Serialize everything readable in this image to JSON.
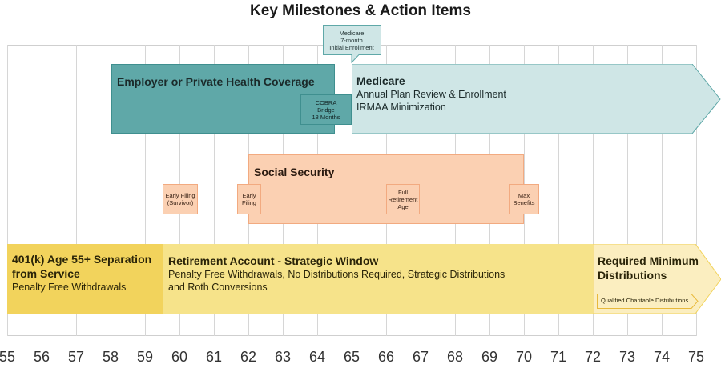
{
  "title": "Key Milestones & Action Items",
  "axis": {
    "ticks": [
      "55",
      "56",
      "57",
      "58",
      "59",
      "60",
      "61",
      "62",
      "63",
      "64",
      "65",
      "66",
      "67",
      "68",
      "69",
      "70",
      "71",
      "72",
      "73",
      "74",
      "75"
    ]
  },
  "colors": {
    "teal": "#5fa8a8",
    "teal_light": "#cfe6e6",
    "peach": "#fbd0b2",
    "gold": "#f2d35c",
    "yellow": "#f6e38a",
    "cream": "#fbeec0"
  },
  "health": {
    "employer": {
      "head": "Employer or Private Health Coverage"
    },
    "cobra": {
      "line1": "COBRA",
      "line2": "Bridge",
      "line3": "18 Months"
    },
    "medicare": {
      "head": "Medicare",
      "sub1": "Annual Plan Review & Enrollment",
      "sub2": "IRMAA Minimization"
    },
    "medicare_enroll": {
      "line1": "Medicare",
      "line2": "7-month",
      "line3": "Initial Enrollment"
    }
  },
  "social_security": {
    "head": "Social Security",
    "early_survivor": {
      "line1": "Early Filing",
      "line2": "(Survivor)"
    },
    "early": {
      "line1": "Early",
      "line2": "Filing"
    },
    "fra": {
      "line1": "Full",
      "line2": "Retirement",
      "line3": "Age"
    },
    "max": {
      "line1": "Max",
      "line2": "Benefits"
    }
  },
  "retirement": {
    "separation": {
      "head1": "401(k) Age 55+ Separation",
      "head2": "from Service",
      "sub": "Penalty Free Withdrawals"
    },
    "strategic": {
      "head": "Retirement Account - Strategic Window",
      "sub1": "Penalty Free Withdrawals, No Distributions Required, Strategic Distributions",
      "sub2": "and Roth Conversions"
    },
    "rmd": {
      "head1": "Required Minimum",
      "head2": "Distributions",
      "qcd": "Qualified Charitable Distributions"
    }
  }
}
